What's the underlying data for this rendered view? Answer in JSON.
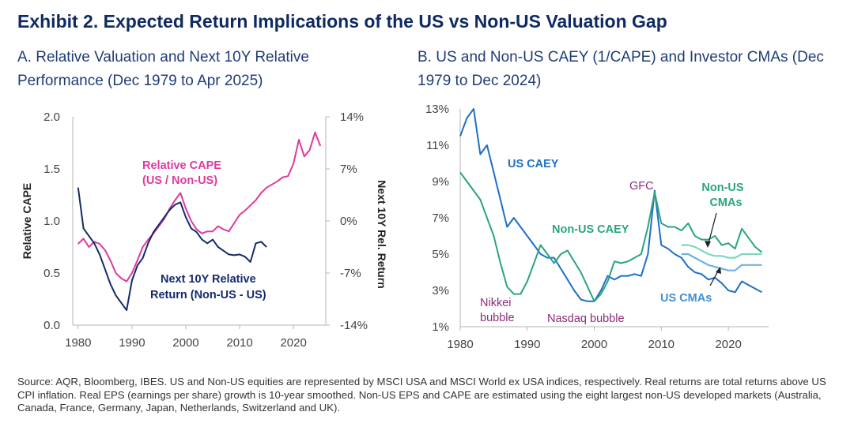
{
  "title": "Exhibit 2. Expected Return Implications of the US vs Non-US Valuation Gap",
  "panel_a_title": "A. Relative Valuation and Next 10Y Relative Performance (Dec 1979 to Apr 2025)",
  "panel_b_title": "B. US and Non-US CAEY (1/CAPE) and Investor CMAs (Dec 1979 to Dec 2024)",
  "footnote": "Source: AQR, Bloomberg, IBES. US and Non-US equities are represented by MSCI USA and MSCI World ex USA indices, respectively. Real returns are total returns above US CPI inflation. Real EPS (earnings per share) growth is 10-year smoothed. Non-US EPS and CAPE are estimated using the eight largest non-US developed markets (Australia, Canada, France, Germany, Japan, Netherlands, Switzerland and UK).",
  "colors": {
    "title": "#0f2a63",
    "pink": "#e0399f",
    "navy": "#152a69",
    "us_blue": "#1d6fc7",
    "nonus_green": "#2aa57d",
    "cma_green": "#7ed6c2",
    "cma_blue": "#6fb1e3",
    "purple": "#8d2c76"
  },
  "chart_data": [
    {
      "type": "line",
      "title": "A. Relative Valuation and Next 10Y Relative Performance (Dec 1979 to Apr 2025)",
      "xlabel": "",
      "ylabel": "Relative CAPE",
      "y2label": "Next 10Y Rel. Return",
      "xlim": [
        1979,
        2026
      ],
      "ylim": [
        0,
        2
      ],
      "y2lim": [
        -14,
        14
      ],
      "x_ticks": [
        "1980",
        "1990",
        "2000",
        "2010",
        "2020"
      ],
      "y_ticks": [
        "0.0",
        "0.5",
        "1.0",
        "1.5",
        "2.0"
      ],
      "y2_ticks": [
        "-14%",
        "-7%",
        "0%",
        "7%",
        "14%"
      ],
      "annotations": {
        "relative_cape": [
          "Relative CAPE",
          "(US / Non-US)"
        ],
        "next10y": [
          "Next 10Y Relative",
          "Return (Non-US - US)"
        ]
      },
      "series": [
        {
          "name": "Relative CAPE (US / Non-US)",
          "axis": "left",
          "color": "#e0399f",
          "x": [
            1980,
            1981,
            1982,
            1983,
            1984,
            1985,
            1986,
            1987,
            1988,
            1989,
            1990,
            1991,
            1992,
            1993,
            1994,
            1995,
            1996,
            1997,
            1998,
            1999,
            2000,
            2001,
            2002,
            2003,
            2004,
            2005,
            2006,
            2007,
            2008,
            2009,
            2010,
            2011,
            2012,
            2013,
            2014,
            2015,
            2016,
            2017,
            2018,
            2019,
            2020,
            2021,
            2022,
            2023,
            2024,
            2025
          ],
          "values": [
            0.78,
            0.83,
            0.75,
            0.8,
            0.78,
            0.72,
            0.62,
            0.5,
            0.45,
            0.42,
            0.5,
            0.62,
            0.75,
            0.82,
            0.88,
            0.95,
            1.02,
            1.12,
            1.2,
            1.27,
            1.12,
            1.0,
            0.92,
            0.88,
            0.9,
            0.9,
            0.95,
            0.92,
            0.9,
            0.98,
            1.06,
            1.1,
            1.15,
            1.2,
            1.27,
            1.32,
            1.35,
            1.38,
            1.42,
            1.43,
            1.55,
            1.78,
            1.62,
            1.68,
            1.85,
            1.72
          ]
        },
        {
          "name": "Next 10Y Relative Return (Non-US - US)",
          "axis": "right",
          "color": "#152a69",
          "x": [
            1980,
            1981,
            1982,
            1983,
            1984,
            1985,
            1986,
            1987,
            1988,
            1989,
            1990,
            1991,
            1992,
            1993,
            1994,
            1995,
            1996,
            1997,
            1998,
            1999,
            2000,
            2001,
            2002,
            2003,
            2004,
            2005,
            2006,
            2007,
            2008,
            2009,
            2010,
            2011,
            2012,
            2013,
            2014,
            2015
          ],
          "values": [
            4.5,
            -1.0,
            -2.0,
            -3.0,
            -4.5,
            -6.5,
            -8.5,
            -10.0,
            -11.0,
            -12.0,
            -8.0,
            -6.0,
            -5.0,
            -3.0,
            -1.5,
            -0.5,
            0.5,
            1.5,
            2.2,
            2.5,
            0.5,
            -1.0,
            -1.5,
            -2.5,
            -3.0,
            -2.5,
            -3.5,
            -4.0,
            -4.5,
            -4.6,
            -4.5,
            -4.8,
            -5.5,
            -3.0,
            -2.8,
            -3.5
          ]
        }
      ]
    },
    {
      "type": "line",
      "title": "B. US and Non-US CAEY (1/CAPE) and Investor CMAs (Dec 1979 to Dec 2024)",
      "xlabel": "",
      "ylabel": "",
      "xlim": [
        1980,
        2026
      ],
      "ylim": [
        1,
        13
      ],
      "x_ticks": [
        "1980",
        "1990",
        "2000",
        "2010",
        "2020"
      ],
      "y_ticks": [
        "1%",
        "3%",
        "5%",
        "7%",
        "9%",
        "11%",
        "13%"
      ],
      "annotations": {
        "us_caey": "US CAEY",
        "nonus_caey": "Non-US CAEY",
        "gfc": "GFC",
        "nonus_cmas": [
          "Non-US",
          "CMAs"
        ],
        "us_cmas": "US CMAs",
        "nikkei": [
          "Nikkei",
          "bubble"
        ],
        "nasdaq": "Nasdaq bubble"
      },
      "series": [
        {
          "name": "US CAEY",
          "color": "#1d6fc7",
          "x": [
            1980,
            1981,
            1982,
            1983,
            1984,
            1985,
            1986,
            1987,
            1988,
            1989,
            1990,
            1991,
            1992,
            1993,
            1994,
            1995,
            1996,
            1997,
            1998,
            1999,
            2000,
            2001,
            2002,
            2003,
            2004,
            2005,
            2006,
            2007,
            2008,
            2009,
            2010,
            2011,
            2012,
            2013,
            2014,
            2015,
            2016,
            2017,
            2018,
            2019,
            2020,
            2021,
            2022,
            2023,
            2024,
            2025
          ],
          "values": [
            11.5,
            12.5,
            13.0,
            10.5,
            11.0,
            9.5,
            8.0,
            6.5,
            7.0,
            6.5,
            6.0,
            5.5,
            5.0,
            4.8,
            4.8,
            4.2,
            3.6,
            3.0,
            2.5,
            2.4,
            2.4,
            3.0,
            3.8,
            3.6,
            3.8,
            3.8,
            3.9,
            3.8,
            5.0,
            8.5,
            5.5,
            5.3,
            5.0,
            4.8,
            4.3,
            4.0,
            3.9,
            3.6,
            3.7,
            3.4,
            3.0,
            2.9,
            3.5,
            3.3,
            3.1,
            2.9
          ]
        },
        {
          "name": "Non-US CAEY",
          "color": "#2aa57d",
          "x": [
            1980,
            1981,
            1982,
            1983,
            1984,
            1985,
            1986,
            1987,
            1988,
            1989,
            1990,
            1991,
            1992,
            1993,
            1994,
            1995,
            1996,
            1997,
            1998,
            1999,
            2000,
            2001,
            2002,
            2003,
            2004,
            2005,
            2006,
            2007,
            2008,
            2009,
            2010,
            2011,
            2012,
            2013,
            2014,
            2015,
            2016,
            2017,
            2018,
            2019,
            2020,
            2021,
            2022,
            2023,
            2024,
            2025
          ],
          "values": [
            9.5,
            9.0,
            8.5,
            8.0,
            7.0,
            6.0,
            4.5,
            3.2,
            2.8,
            2.8,
            3.5,
            4.5,
            5.5,
            5.0,
            4.5,
            5.0,
            5.2,
            4.6,
            4.0,
            3.2,
            2.4,
            2.8,
            3.5,
            4.6,
            4.5,
            4.6,
            4.8,
            5.0,
            6.5,
            8.4,
            6.7,
            6.5,
            6.5,
            6.3,
            6.7,
            6.0,
            5.8,
            5.8,
            6.0,
            5.5,
            5.6,
            5.3,
            6.4,
            5.9,
            5.4,
            5.1
          ]
        },
        {
          "name": "Non-US CMAs",
          "color": "#7ed6c2",
          "x": [
            2013,
            2014,
            2015,
            2016,
            2017,
            2018,
            2019,
            2020,
            2021,
            2022,
            2023,
            2024,
            2025
          ],
          "values": [
            5.5,
            5.5,
            5.4,
            5.2,
            5.0,
            4.9,
            4.9,
            4.8,
            4.8,
            5.0,
            5.0,
            5.0,
            5.0
          ]
        },
        {
          "name": "US CMAs",
          "color": "#6fb1e3",
          "x": [
            2013,
            2014,
            2015,
            2016,
            2017,
            2018,
            2019,
            2020,
            2021,
            2022,
            2023,
            2024,
            2025
          ],
          "values": [
            5.0,
            5.0,
            4.8,
            4.6,
            4.4,
            4.3,
            4.2,
            4.1,
            4.1,
            4.4,
            4.4,
            4.4,
            4.4
          ]
        }
      ]
    }
  ]
}
